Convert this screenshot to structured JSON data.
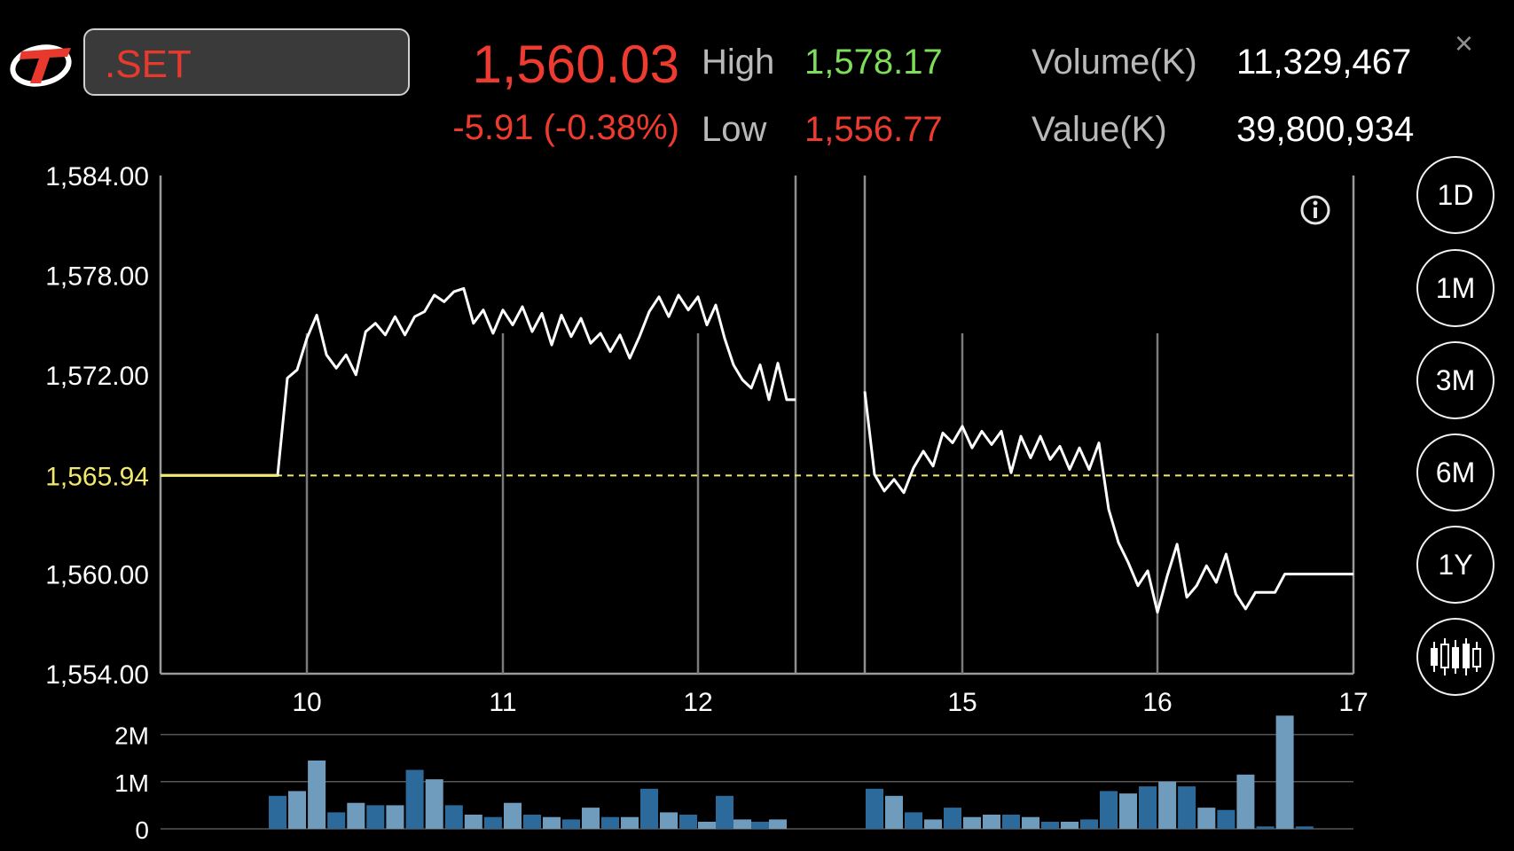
{
  "header": {
    "symbol": ".SET",
    "last_price": "1,560.03",
    "change": "-5.91 (-0.38%)",
    "high_label": "High",
    "high_value": "1,578.17",
    "low_label": "Low",
    "low_value": "1,556.77",
    "volume_label": "Volume(K)",
    "volume_value": "11,329,467",
    "value_label": "Value(K)",
    "value_value": "39,800,934",
    "close_glyph": "×"
  },
  "colors": {
    "price_down": "#ef3b2f",
    "high": "#7ddc5a",
    "low": "#ef3b2f",
    "prior_close_line": "#f3e86e",
    "volume_bar_dark": "#2b6a9a",
    "volume_bar_light": "#6f9bbd"
  },
  "periods": [
    {
      "label": "1D",
      "active": true
    },
    {
      "label": "1M",
      "active": false
    },
    {
      "label": "3M",
      "active": false
    },
    {
      "label": "6M",
      "active": false
    },
    {
      "label": "1Y",
      "active": false
    }
  ],
  "icons": {
    "logo": "settrade-logo-icon",
    "info": "info-icon",
    "candle": "candlestick-chart-icon",
    "close": "close-icon"
  },
  "chart_data": [
    {
      "type": "line",
      "name": "price",
      "xlim": [
        9.25,
        17.0
      ],
      "ylim": [
        1554.0,
        1584.0
      ],
      "y_ticks": [
        "1,584.00",
        "1,578.00",
        "1,572.00",
        "1,565.94",
        "1,560.00",
        "1,554.00"
      ],
      "y_tick_values": [
        1584,
        1578,
        1572,
        1565.94,
        1560,
        1554
      ],
      "x_ticks": [
        "10",
        "11",
        "12",
        "15",
        "16",
        "17"
      ],
      "x_tick_values": [
        10,
        11,
        12,
        15,
        16,
        17
      ],
      "prior_close": 1565.94,
      "grid": "vertical",
      "segments": [
        [
          [
            9.25,
            1565.94
          ],
          [
            9.85,
            1565.94
          ],
          [
            9.9,
            1571.8
          ],
          [
            9.95,
            1572.3
          ],
          [
            10.0,
            1574.2
          ],
          [
            10.05,
            1575.6
          ],
          [
            10.1,
            1573.2
          ],
          [
            10.15,
            1572.4
          ],
          [
            10.2,
            1573.2
          ],
          [
            10.25,
            1572.0
          ],
          [
            10.3,
            1574.6
          ],
          [
            10.35,
            1575.1
          ],
          [
            10.4,
            1574.4
          ],
          [
            10.45,
            1575.5
          ],
          [
            10.5,
            1574.4
          ],
          [
            10.55,
            1575.5
          ],
          [
            10.6,
            1575.8
          ],
          [
            10.65,
            1576.8
          ],
          [
            10.7,
            1576.4
          ],
          [
            10.75,
            1577.0
          ],
          [
            10.8,
            1577.2
          ],
          [
            10.85,
            1575.1
          ],
          [
            10.9,
            1575.9
          ],
          [
            10.95,
            1574.5
          ],
          [
            11.0,
            1575.9
          ],
          [
            11.05,
            1575.0
          ],
          [
            11.1,
            1576.1
          ],
          [
            11.15,
            1574.6
          ],
          [
            11.2,
            1575.7
          ],
          [
            11.25,
            1573.8
          ],
          [
            11.3,
            1575.6
          ],
          [
            11.35,
            1574.3
          ],
          [
            11.4,
            1575.4
          ],
          [
            11.45,
            1573.9
          ],
          [
            11.5,
            1574.5
          ],
          [
            11.55,
            1573.4
          ],
          [
            11.6,
            1574.4
          ],
          [
            11.65,
            1573.0
          ],
          [
            11.7,
            1574.3
          ],
          [
            11.75,
            1575.8
          ],
          [
            11.8,
            1576.7
          ],
          [
            11.85,
            1575.5
          ],
          [
            11.9,
            1576.8
          ],
          [
            11.95,
            1575.9
          ],
          [
            12.0,
            1576.7
          ],
          [
            12.05,
            1575.0
          ],
          [
            12.1,
            1576.2
          ],
          [
            12.15,
            1574.2
          ],
          [
            12.2,
            1572.6
          ],
          [
            12.25,
            1571.7
          ],
          [
            12.3,
            1571.2
          ],
          [
            12.35,
            1572.6
          ],
          [
            12.4,
            1570.5
          ],
          [
            12.45,
            1572.7
          ],
          [
            12.5,
            1570.5
          ],
          [
            12.55,
            1570.5
          ]
        ],
        [
          [
            14.5,
            1571.0
          ],
          [
            14.55,
            1566.0
          ],
          [
            14.6,
            1565.0
          ],
          [
            14.65,
            1565.7
          ],
          [
            14.7,
            1564.9
          ],
          [
            14.75,
            1566.4
          ],
          [
            14.8,
            1567.4
          ],
          [
            14.85,
            1566.5
          ],
          [
            14.9,
            1568.5
          ],
          [
            14.95,
            1567.9
          ],
          [
            15.0,
            1568.9
          ],
          [
            15.05,
            1567.6
          ],
          [
            15.1,
            1568.6
          ],
          [
            15.15,
            1567.8
          ],
          [
            15.2,
            1568.6
          ],
          [
            15.25,
            1566.1
          ],
          [
            15.3,
            1568.3
          ],
          [
            15.35,
            1567.0
          ],
          [
            15.4,
            1568.3
          ],
          [
            15.45,
            1566.9
          ],
          [
            15.5,
            1567.7
          ],
          [
            15.55,
            1566.3
          ],
          [
            15.6,
            1567.6
          ],
          [
            15.65,
            1566.3
          ],
          [
            15.7,
            1567.9
          ],
          [
            15.75,
            1563.9
          ],
          [
            15.8,
            1561.9
          ],
          [
            15.85,
            1560.7
          ],
          [
            15.9,
            1559.3
          ],
          [
            15.95,
            1560.2
          ],
          [
            16.0,
            1557.7
          ],
          [
            16.05,
            1559.9
          ],
          [
            16.1,
            1561.8
          ],
          [
            16.15,
            1558.6
          ],
          [
            16.2,
            1559.3
          ],
          [
            16.25,
            1560.5
          ],
          [
            16.3,
            1559.5
          ],
          [
            16.35,
            1561.2
          ],
          [
            16.4,
            1558.8
          ],
          [
            16.45,
            1557.9
          ],
          [
            16.5,
            1558.9
          ],
          [
            16.55,
            1558.9
          ],
          [
            16.6,
            1558.9
          ],
          [
            16.65,
            1560.0
          ],
          [
            16.7,
            1560.0
          ],
          [
            17.0,
            1560.0
          ]
        ]
      ]
    },
    {
      "type": "bar",
      "name": "volume",
      "ylim": [
        0,
        2500000
      ],
      "y_ticks": [
        "2M",
        "1M",
        "0"
      ],
      "y_tick_values": [
        2000000,
        1000000,
        0
      ],
      "x": [
        9.85,
        9.95,
        10.05,
        10.15,
        10.25,
        10.35,
        10.45,
        10.55,
        10.65,
        10.75,
        10.85,
        10.95,
        11.05,
        11.15,
        11.25,
        11.35,
        11.45,
        11.55,
        11.65,
        11.75,
        11.85,
        11.95,
        12.05,
        12.15,
        12.25,
        12.35,
        12.45,
        12.55,
        14.55,
        14.65,
        14.75,
        14.85,
        14.95,
        15.05,
        15.15,
        15.25,
        15.35,
        15.45,
        15.55,
        15.65,
        15.75,
        15.85,
        15.95,
        16.05,
        16.15,
        16.25,
        16.35,
        16.45,
        16.55,
        16.65,
        16.75
      ],
      "values": [
        700000,
        800000,
        1450000,
        350000,
        550000,
        500000,
        500000,
        1250000,
        1050000,
        500000,
        300000,
        250000,
        550000,
        300000,
        250000,
        200000,
        450000,
        250000,
        250000,
        850000,
        350000,
        300000,
        150000,
        700000,
        200000,
        150000,
        200000,
        0,
        850000,
        700000,
        350000,
        200000,
        450000,
        250000,
        300000,
        300000,
        250000,
        150000,
        150000,
        200000,
        800000,
        750000,
        900000,
        1000000,
        900000,
        450000,
        400000,
        1150000,
        50000,
        2400000,
        50000
      ],
      "shade": [
        "dark",
        "light",
        "light",
        "dark",
        "light",
        "dark",
        "light",
        "dark",
        "light",
        "dark",
        "light",
        "dark",
        "light",
        "dark",
        "light",
        "dark",
        "light",
        "dark",
        "light",
        "dark",
        "light",
        "dark",
        "light",
        "dark",
        "light",
        "dark",
        "light",
        "dark",
        "dark",
        "light",
        "dark",
        "light",
        "dark",
        "light",
        "light",
        "dark",
        "light",
        "dark",
        "light",
        "dark",
        "dark",
        "light",
        "dark",
        "light",
        "dark",
        "light",
        "dark",
        "light",
        "dark",
        "light",
        "dark"
      ]
    }
  ]
}
